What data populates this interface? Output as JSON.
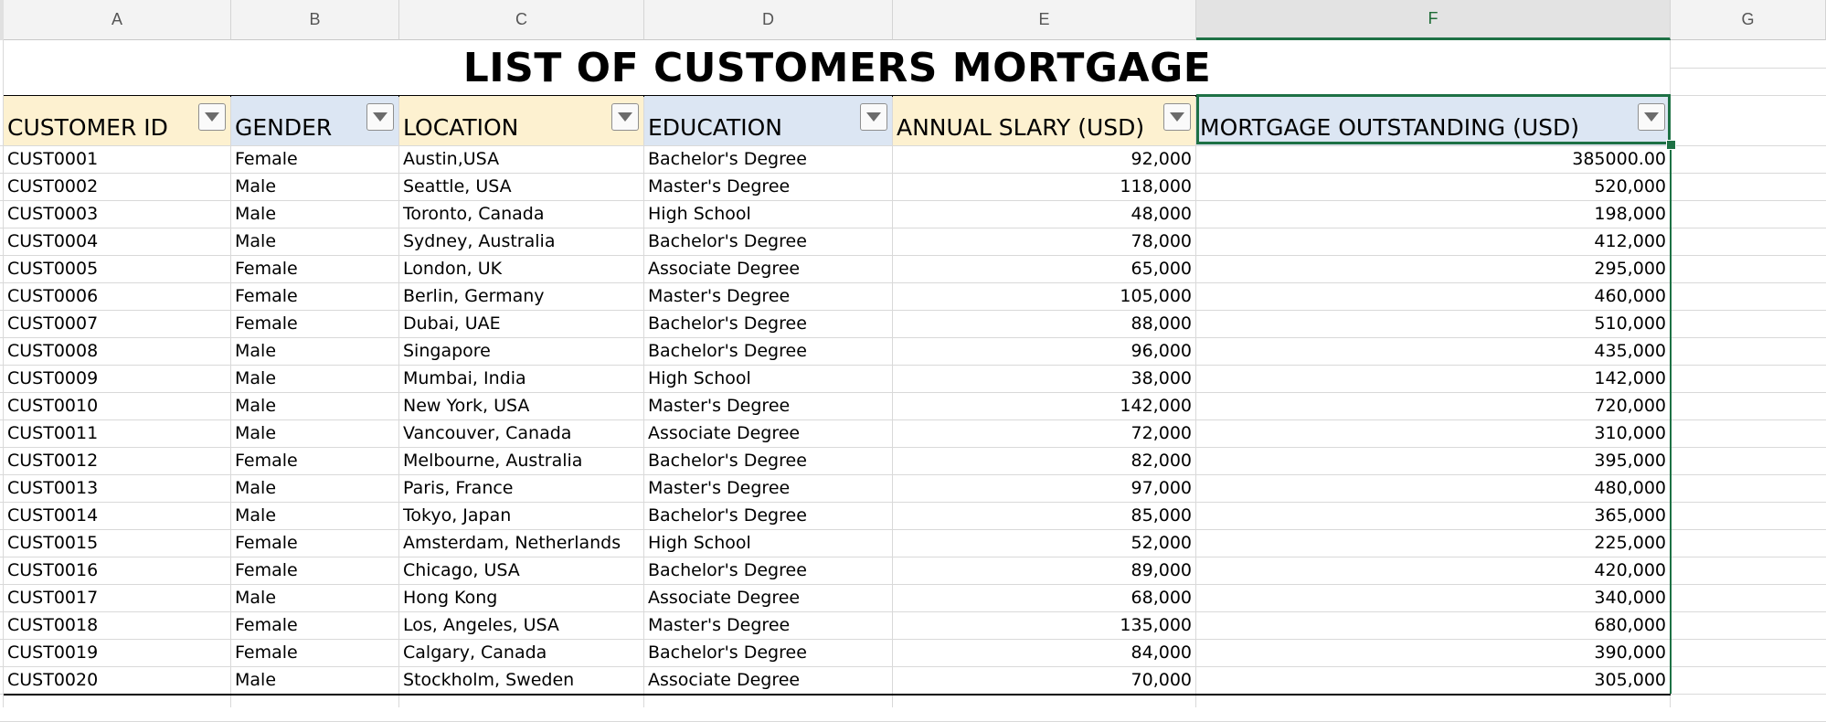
{
  "column_headers": [
    "A",
    "B",
    "C",
    "D",
    "E",
    "F",
    "G"
  ],
  "selected_column": "F",
  "title": "LIST OF CUSTOMERS MORTGAGE",
  "table_headers": [
    "CUSTOMER ID",
    "GENDER",
    "LOCATION",
    "EDUCATION",
    "ANNUAL SLARY (USD)",
    "MORTGAGE OUTSTANDING (USD)"
  ],
  "rows": [
    [
      "CUST0001",
      "Female",
      "Austin,USA",
      "Bachelor's Degree",
      "92,000",
      "385000.00"
    ],
    [
      "CUST0002",
      "Male",
      "Seattle, USA",
      "Master's Degree",
      "118,000",
      "520,000"
    ],
    [
      "CUST0003",
      "Male",
      "Toronto, Canada",
      "High School",
      "48,000",
      "198,000"
    ],
    [
      "CUST0004",
      "Male",
      "Sydney, Australia",
      "Bachelor's Degree",
      "78,000",
      "412,000"
    ],
    [
      "CUST0005",
      "Female",
      "London, UK",
      "Associate Degree",
      "65,000",
      "295,000"
    ],
    [
      "CUST0006",
      "Female",
      "Berlin, Germany",
      "Master's Degree",
      "105,000",
      "460,000"
    ],
    [
      "CUST0007",
      "Female",
      "Dubai, UAE",
      "Bachelor's Degree",
      "88,000",
      "510,000"
    ],
    [
      "CUST0008",
      "Male",
      "Singapore",
      "Bachelor's Degree",
      "96,000",
      "435,000"
    ],
    [
      "CUST0009",
      "Male",
      "Mumbai, India",
      "High School",
      "38,000",
      "142,000"
    ],
    [
      "CUST0010",
      "Male",
      "New York, USA",
      "Master's Degree",
      "142,000",
      "720,000"
    ],
    [
      "CUST0011",
      "Male",
      "Vancouver, Canada",
      "Associate Degree",
      "72,000",
      "310,000"
    ],
    [
      "CUST0012",
      "Female",
      "Melbourne, Australia",
      "Bachelor's Degree",
      "82,000",
      "395,000"
    ],
    [
      "CUST0013",
      "Male",
      "Paris, France",
      "Master's Degree",
      "97,000",
      "480,000"
    ],
    [
      "CUST0014",
      "Male",
      "Tokyo, Japan",
      "Bachelor's Degree",
      "85,000",
      "365,000"
    ],
    [
      "CUST0015",
      "Female",
      "Amsterdam, Netherlands",
      "High School",
      "52,000",
      "225,000"
    ],
    [
      "CUST0016",
      "Female",
      "Chicago, USA",
      "Bachelor's Degree",
      "89,000",
      "420,000"
    ],
    [
      "CUST0017",
      "Male",
      "Hong Kong",
      "Associate Degree",
      "68,000",
      "340,000"
    ],
    [
      "CUST0018",
      "Female",
      "Los, Angeles, USA",
      "Master's Degree",
      "135,000",
      "680,000"
    ],
    [
      "CUST0019",
      "Female",
      "Calgary, Canada",
      "Bachelor's Degree",
      "84,000",
      "390,000"
    ],
    [
      "CUST0020",
      "Male",
      "Stockholm, Sweden",
      "Associate Degree",
      "70,000",
      "305,000"
    ]
  ],
  "header_fill_colors": [
    "#fdf1d0",
    "#dce6f3",
    "#fdf1d0",
    "#dce6f3",
    "#fdf1d0",
    "#dce6f3"
  ],
  "accent_color": "#1e7145",
  "filter_icon": "dropdown-filter-icon"
}
